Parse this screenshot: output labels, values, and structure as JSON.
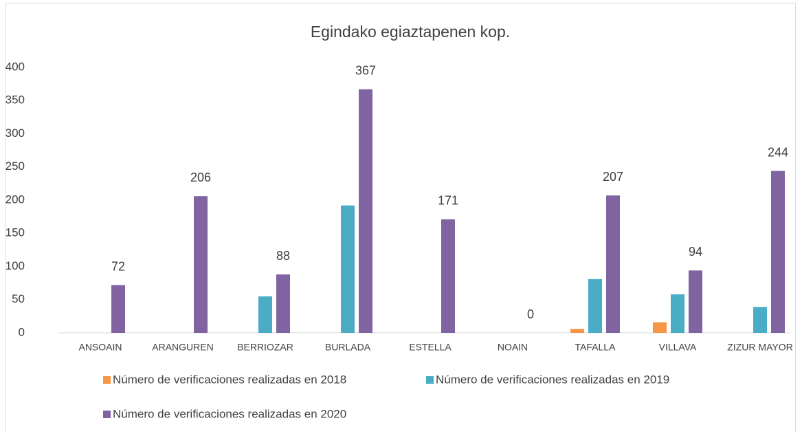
{
  "chart_data": {
    "type": "bar",
    "title": "Egindako egiaztapenen kop.",
    "categories": [
      "ANSOAIN",
      "ARANGUREN",
      "BERRIOZAR",
      "BURLADA",
      "ESTELLA",
      "NOAIN",
      "TAFALLA",
      "VILLAVA",
      "ZIZUR MAYOR"
    ],
    "series": [
      {
        "name": "Número de verificaciones realizadas en 2018",
        "color": "#f79646",
        "values": [
          null,
          null,
          null,
          null,
          null,
          null,
          6,
          16,
          null
        ]
      },
      {
        "name": "Número de verificaciones realizadas en 2019",
        "color": "#4bacc6",
        "values": [
          null,
          null,
          55,
          192,
          null,
          null,
          81,
          58,
          39
        ]
      },
      {
        "name": "Número de verificaciones realizadas en 2020",
        "color": "#8064a2",
        "values": [
          72,
          206,
          88,
          367,
          171,
          0,
          207,
          94,
          244
        ],
        "data_labels": true
      }
    ],
    "ylim": [
      0,
      400
    ],
    "yticks": [
      0,
      50,
      100,
      150,
      200,
      250,
      300,
      350,
      400
    ],
    "grid": false,
    "legend": "bottom"
  }
}
